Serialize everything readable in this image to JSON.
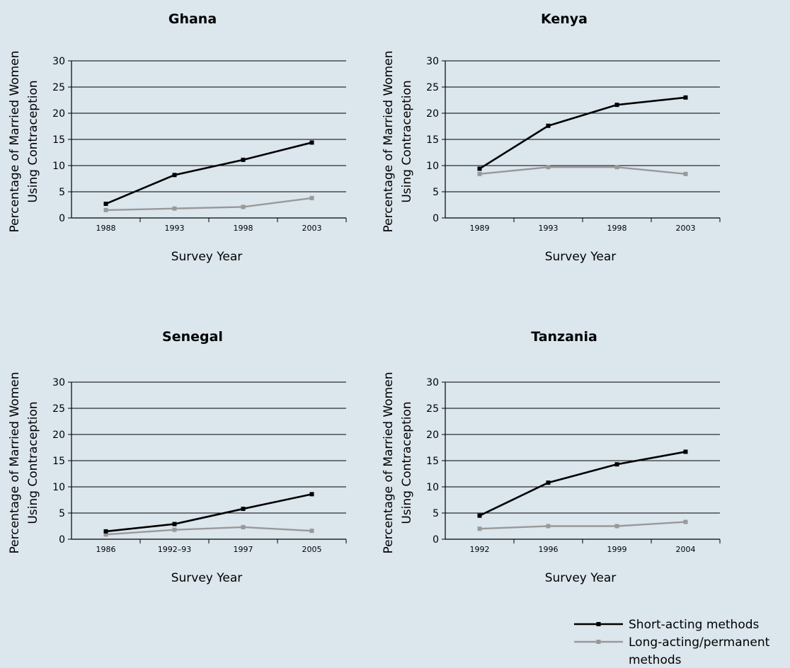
{
  "chart_data": [
    {
      "type": "line",
      "title": "Ghana",
      "ylabel": [
        "Percentage of Married Women",
        "Using Contraception"
      ],
      "xlabel": "Survey Year",
      "categories": [
        "1988",
        "1993",
        "1998",
        "2003"
      ],
      "ylim": [
        0,
        30
      ],
      "yticks": [
        "0",
        "5",
        "10",
        "15",
        "20",
        "25",
        "30"
      ],
      "series": [
        {
          "name": "Short-acting methods",
          "values": [
            2.7,
            8.2,
            11.1,
            14.4
          ]
        },
        {
          "name": "Long-acting/permanent methods",
          "values": [
            1.5,
            1.8,
            2.1,
            3.8
          ]
        }
      ]
    },
    {
      "type": "line",
      "title": "Kenya",
      "ylabel": [
        "Percentage of Married Women",
        "Using Contraception"
      ],
      "xlabel": "Survey Year",
      "categories": [
        "1989",
        "1993",
        "1998",
        "2003"
      ],
      "ylim": [
        0,
        30
      ],
      "yticks": [
        "0",
        "5",
        "10",
        "15",
        "20",
        "25",
        "30"
      ],
      "series": [
        {
          "name": "Short-acting methods",
          "values": [
            9.4,
            17.6,
            21.6,
            23.0
          ]
        },
        {
          "name": "Long-acting/permanent methods",
          "values": [
            8.4,
            9.7,
            9.7,
            8.4
          ]
        }
      ]
    },
    {
      "type": "line",
      "title": "Senegal",
      "ylabel": [
        "Percentage of Married Women",
        "Using Contraception"
      ],
      "xlabel": "Survey Year",
      "categories": [
        "1986",
        "1992–93",
        "1997",
        "2005"
      ],
      "ylim": [
        0,
        30
      ],
      "yticks": [
        "0",
        "5",
        "10",
        "15",
        "20",
        "25",
        "30"
      ],
      "series": [
        {
          "name": "Short-acting methods",
          "values": [
            1.5,
            2.9,
            5.8,
            8.6
          ]
        },
        {
          "name": "Long-acting/permanent methods",
          "values": [
            0.9,
            1.8,
            2.3,
            1.6
          ]
        }
      ]
    },
    {
      "type": "line",
      "title": "Tanzania",
      "ylabel": [
        "Percentage of Married Women",
        "Using Contraception"
      ],
      "xlabel": "Survey Year",
      "categories": [
        "1992",
        "1996",
        "1999",
        "2004"
      ],
      "ylim": [
        0,
        30
      ],
      "yticks": [
        "0",
        "5",
        "10",
        "15",
        "20",
        "25",
        "30"
      ],
      "series": [
        {
          "name": "Short-acting methods",
          "values": [
            4.5,
            10.8,
            14.3,
            16.7
          ]
        },
        {
          "name": "Long-acting/permanent methods",
          "values": [
            2.0,
            2.5,
            2.5,
            3.3
          ]
        }
      ]
    }
  ],
  "legend": {
    "items": [
      {
        "label_lines": [
          "Short-acting methods"
        ],
        "color": "#000000"
      },
      {
        "label_lines": [
          "Long-acting/permanent",
          "methods"
        ],
        "color": "#999999"
      }
    ]
  },
  "colors": {
    "background": "#dbe6ed",
    "short": "#000000",
    "long": "#999999"
  }
}
